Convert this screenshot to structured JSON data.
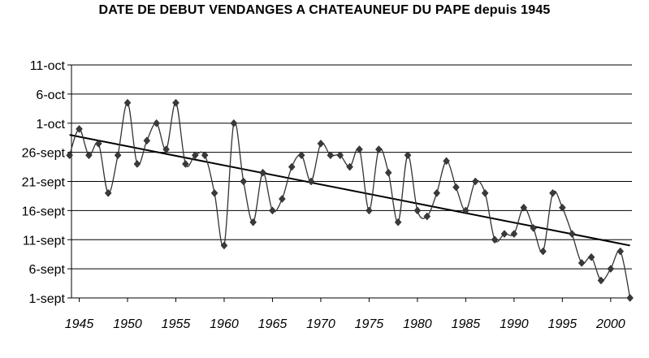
{
  "chart_data": {
    "type": "line",
    "title": "DATE DE DEBUT VENDANGES A CHATEAUNEUF DU PAPE depuis 1945",
    "xlabel": "",
    "ylabel": "",
    "xlim": [
      1944.2,
      2002.2
    ],
    "ylim": [
      "1-sept",
      "11-oct"
    ],
    "y_tick_labels": [
      "1-sept",
      "6-sept",
      "11-sept",
      "16-sept",
      "21-sept",
      "26-sept",
      "1-oct",
      "6-oct",
      "11-oct"
    ],
    "y_tick_day_offsets": [
      0,
      5,
      10,
      15,
      20,
      25,
      30,
      35,
      40
    ],
    "x_tick_labels": [
      "1945",
      "1950",
      "1955",
      "1960",
      "1965",
      "1970",
      "1975",
      "1980",
      "1985",
      "1990",
      "1995",
      "2000"
    ],
    "x_tick_years": [
      1945,
      1950,
      1955,
      1960,
      1965,
      1970,
      1975,
      1980,
      1985,
      1990,
      1995,
      2000
    ],
    "grid": "horizontal",
    "legend": "none",
    "series": [
      {
        "type": "line+marker",
        "marker": "diamond",
        "color": "#333333",
        "x": [
          1944,
          1945,
          1946,
          1947,
          1948,
          1949,
          1950,
          1951,
          1952,
          1953,
          1954,
          1955,
          1956,
          1957,
          1958,
          1959,
          1960,
          1961,
          1962,
          1963,
          1964,
          1965,
          1966,
          1967,
          1968,
          1969,
          1970,
          1971,
          1972,
          1973,
          1974,
          1975,
          1976,
          1977,
          1978,
          1979,
          1980,
          1981,
          1982,
          1983,
          1984,
          1985,
          1986,
          1987,
          1988,
          1989,
          1990,
          1991,
          1992,
          1993,
          1994,
          1995,
          1996,
          1997,
          1998,
          1999,
          2000,
          2001,
          2002
        ],
        "y": [
          24.5,
          29,
          24.5,
          26.5,
          18,
          24.5,
          33.5,
          23,
          27,
          30,
          25.5,
          33.5,
          23,
          24.5,
          24.5,
          18,
          9,
          30,
          20,
          13,
          21.5,
          15,
          17,
          22.5,
          24.5,
          20,
          26.5,
          24.5,
          24.5,
          22.5,
          25.5,
          15,
          25.5,
          21.5,
          13,
          24.5,
          15,
          14,
          18,
          23.5,
          19,
          15,
          20,
          18,
          10,
          11,
          11,
          15.5,
          12,
          8,
          18,
          15.5,
          11,
          6,
          7,
          3,
          5,
          8,
          0
        ]
      },
      {
        "type": "trend",
        "color": "#000000",
        "x": [
          1944,
          2002
        ],
        "y": [
          28,
          9
        ]
      }
    ]
  }
}
